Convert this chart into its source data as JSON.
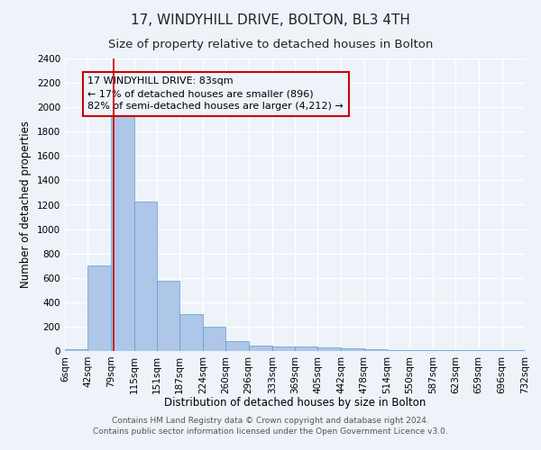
{
  "title": "17, WINDYHILL DRIVE, BOLTON, BL3 4TH",
  "subtitle": "Size of property relative to detached houses in Bolton",
  "xlabel": "Distribution of detached houses by size in Bolton",
  "ylabel": "Number of detached properties",
  "bar_values": [
    15,
    700,
    1950,
    1225,
    575,
    305,
    200,
    80,
    45,
    38,
    35,
    30,
    20,
    15,
    10,
    5,
    5,
    5,
    5,
    5
  ],
  "bin_edges": [
    6,
    42,
    79,
    115,
    151,
    187,
    224,
    260,
    296,
    333,
    369,
    405,
    442,
    478,
    514,
    550,
    587,
    623,
    659,
    696,
    732
  ],
  "x_tick_labels": [
    "6sqm",
    "42sqm",
    "79sqm",
    "115sqm",
    "151sqm",
    "187sqm",
    "224sqm",
    "260sqm",
    "296sqm",
    "333sqm",
    "369sqm",
    "405sqm",
    "442sqm",
    "478sqm",
    "514sqm",
    "550sqm",
    "587sqm",
    "623sqm",
    "659sqm",
    "696sqm",
    "732sqm"
  ],
  "bar_color": "#aec6e8",
  "bar_edge_color": "#5b9bd5",
  "vline_x": 83,
  "vline_color": "#cc0000",
  "ylim": [
    0,
    2400
  ],
  "yticks": [
    0,
    200,
    400,
    600,
    800,
    1000,
    1200,
    1400,
    1600,
    1800,
    2000,
    2200,
    2400
  ],
  "annotation_line1": "17 WINDYHILL DRIVE: 83sqm",
  "annotation_line2": "← 17% of detached houses are smaller (896)",
  "annotation_line3": "82% of semi-detached houses are larger (4,212) →",
  "annotation_box_color": "#cc0000",
  "footer_line1": "Contains HM Land Registry data © Crown copyright and database right 2024.",
  "footer_line2": "Contains public sector information licensed under the Open Government Licence v3.0.",
  "background_color": "#eef2f9",
  "grid_color": "#ffffff",
  "title_fontsize": 11,
  "subtitle_fontsize": 9.5,
  "axis_label_fontsize": 8.5,
  "tick_fontsize": 7.5,
  "annotation_fontsize": 8,
  "footer_fontsize": 6.5
}
